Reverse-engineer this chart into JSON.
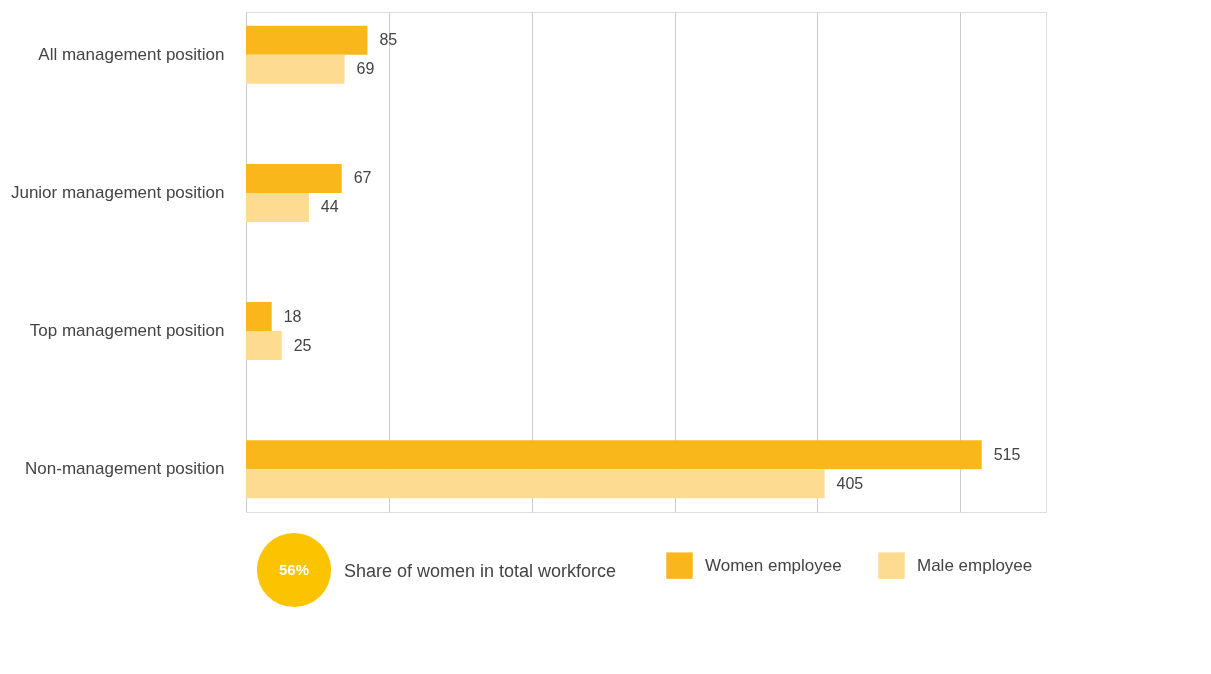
{
  "chart_data": {
    "type": "bar",
    "orientation": "horizontal",
    "categories": [
      "All management position",
      "Junior management position",
      "Top management position",
      "Non-management position"
    ],
    "series": [
      {
        "name": "Women employee",
        "color": "#f9b71c",
        "values": [
          85,
          67,
          18,
          515
        ]
      },
      {
        "name": "Male employee",
        "color": "#fddb91",
        "values": [
          69,
          44,
          25,
          405
        ]
      }
    ],
    "xlim": [
      0,
      560
    ],
    "xticks": [
      {
        "value": 0,
        "label": null
      },
      {
        "value": 100,
        "label": null
      },
      {
        "value": 200,
        "label": null
      },
      {
        "value": 300,
        "label": null
      },
      {
        "value": 400,
        "label": null
      },
      {
        "value": 500,
        "label": null
      }
    ],
    "tick_labels": "y",
    "grid": "x",
    "data_labels": true,
    "legend": "bottom right",
    "annotations": [
      "56%",
      "Share of women in total workforce"
    ]
  }
}
